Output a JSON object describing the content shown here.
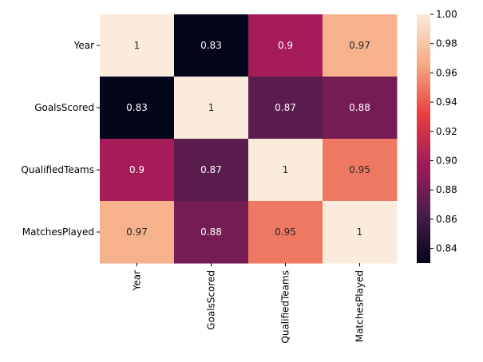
{
  "chart_data": {
    "type": "heatmap",
    "rows": [
      "Year",
      "GoalsScored",
      "QualifiedTeams",
      "MatchesPlayed"
    ],
    "columns": [
      "Year",
      "GoalsScored",
      "QualifiedTeams",
      "MatchesPlayed"
    ],
    "values": [
      [
        1,
        0.83,
        0.9,
        0.97
      ],
      [
        0.83,
        1,
        0.87,
        0.88
      ],
      [
        0.9,
        0.87,
        1,
        0.95
      ],
      [
        0.97,
        0.88,
        0.95,
        1
      ]
    ],
    "cell_labels": [
      [
        "1",
        "0.83",
        "0.9",
        "0.97"
      ],
      [
        "0.83",
        "1",
        "0.87",
        "0.88"
      ],
      [
        "0.9",
        "0.87",
        "1",
        "0.95"
      ],
      [
        "0.97",
        "0.88",
        "0.95",
        "1"
      ]
    ],
    "colorbar": {
      "min": 0.83,
      "max": 1.0,
      "ticks": [
        "0.84",
        "0.86",
        "0.88",
        "0.90",
        "0.92",
        "0.94",
        "0.96",
        "0.98",
        "1.00"
      ],
      "colormap": "rocket",
      "colors": [
        "#03051a",
        "#4c1d4b",
        "#a11a5b",
        "#e83f3f",
        "#f6aa82",
        "#faebdd"
      ]
    },
    "grid": false,
    "legend": "colorbar-right"
  }
}
